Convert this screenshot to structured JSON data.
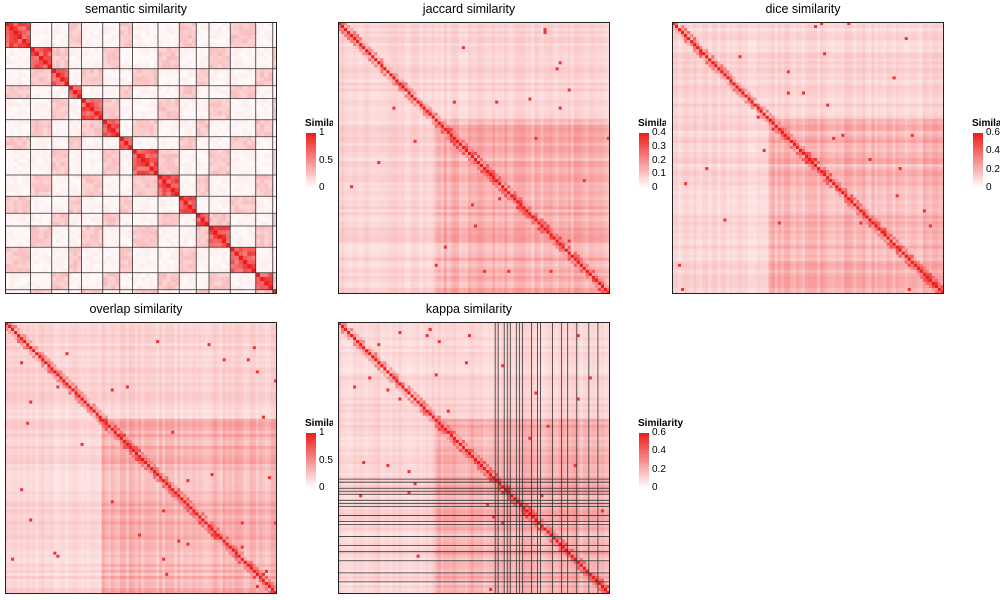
{
  "chart_data": [
    {
      "type": "heatmap",
      "title": "semantic similarity",
      "legend": {
        "title": "Similarity",
        "ticks": [
          "1",
          "0.5",
          "0"
        ],
        "max": 1.0
      },
      "n": 64,
      "clusters": [
        6,
        5,
        4,
        3,
        5,
        4,
        3,
        6,
        5,
        4,
        3,
        5,
        6,
        4,
        1
      ],
      "grid": true,
      "colors": {
        "low": "#ffffff",
        "high": "#ee1b1b"
      }
    },
    {
      "type": "heatmap",
      "title": "jaccard similarity",
      "legend": {
        "title": "Similarity",
        "ticks": [
          "0.4",
          "0.3",
          "0.2",
          "0.1",
          "0"
        ],
        "max": 0.45
      },
      "n": 90,
      "clusters": [],
      "grid": false,
      "colors": {
        "low": "#ffffff",
        "high": "#ee1b1b"
      }
    },
    {
      "type": "heatmap",
      "title": "dice similarity",
      "legend": {
        "title": "Similarity",
        "ticks": [
          "0.6",
          "0.4",
          "0.2",
          "0"
        ],
        "max": 0.65
      },
      "n": 90,
      "clusters": [],
      "grid": false,
      "colors": {
        "low": "#ffffff",
        "high": "#ee1b1b"
      }
    },
    {
      "type": "heatmap",
      "title": "overlap similarity",
      "legend": {
        "title": "Similarity",
        "ticks": [
          "1",
          "0.5",
          "0"
        ],
        "max": 1.0
      },
      "n": 90,
      "clusters": [],
      "grid": false,
      "colors": {
        "low": "#ffffff",
        "high": "#ee1b1b"
      }
    },
    {
      "type": "heatmap",
      "title": "kappa similarity",
      "legend": {
        "title": "Similarity",
        "ticks": [
          "0.6",
          "0.4",
          "0.2",
          "0"
        ],
        "max": 0.65
      },
      "n": 90,
      "clusters": [
        52,
        1,
        2,
        1,
        1,
        2,
        1,
        1,
        3,
        2,
        1,
        4,
        3,
        2,
        3,
        4,
        3,
        4
      ],
      "grid": true,
      "colors": {
        "low": "#ffffff",
        "high": "#ee1b1b"
      }
    }
  ]
}
